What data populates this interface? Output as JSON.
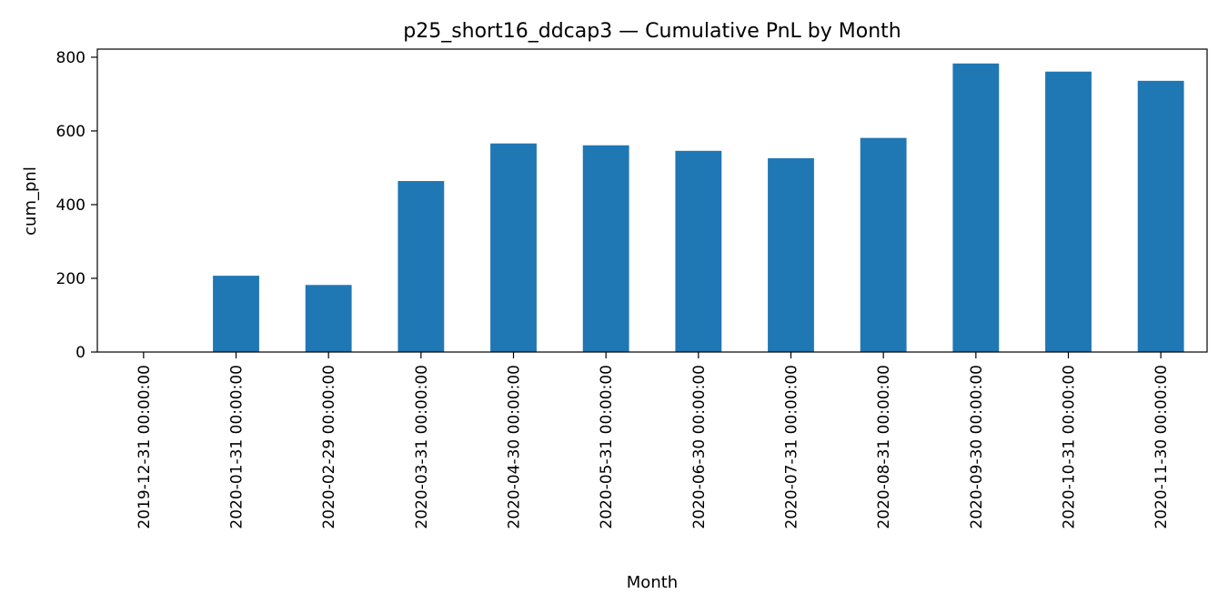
{
  "chart_data": {
    "type": "bar",
    "title": "p25_short16_ddcap3 — Cumulative PnL by Month",
    "xlabel": "Month",
    "ylabel": "cum_pnl",
    "categories": [
      "2019-12-31 00:00:00",
      "2020-01-31 00:00:00",
      "2020-02-29 00:00:00",
      "2020-03-31 00:00:00",
      "2020-04-30 00:00:00",
      "2020-05-31 00:00:00",
      "2020-06-30 00:00:00",
      "2020-07-31 00:00:00",
      "2020-08-31 00:00:00",
      "2020-09-30 00:00:00",
      "2020-10-31 00:00:00",
      "2020-11-30 00:00:00"
    ],
    "values": [
      1,
      207,
      182,
      464,
      566,
      561,
      546,
      526,
      581,
      783,
      761,
      736
    ],
    "yticks": [
      0,
      200,
      400,
      600,
      800
    ],
    "ylim": [
      0,
      822
    ],
    "grid": false,
    "legend": "none",
    "bar_color": "#1f77b4"
  }
}
